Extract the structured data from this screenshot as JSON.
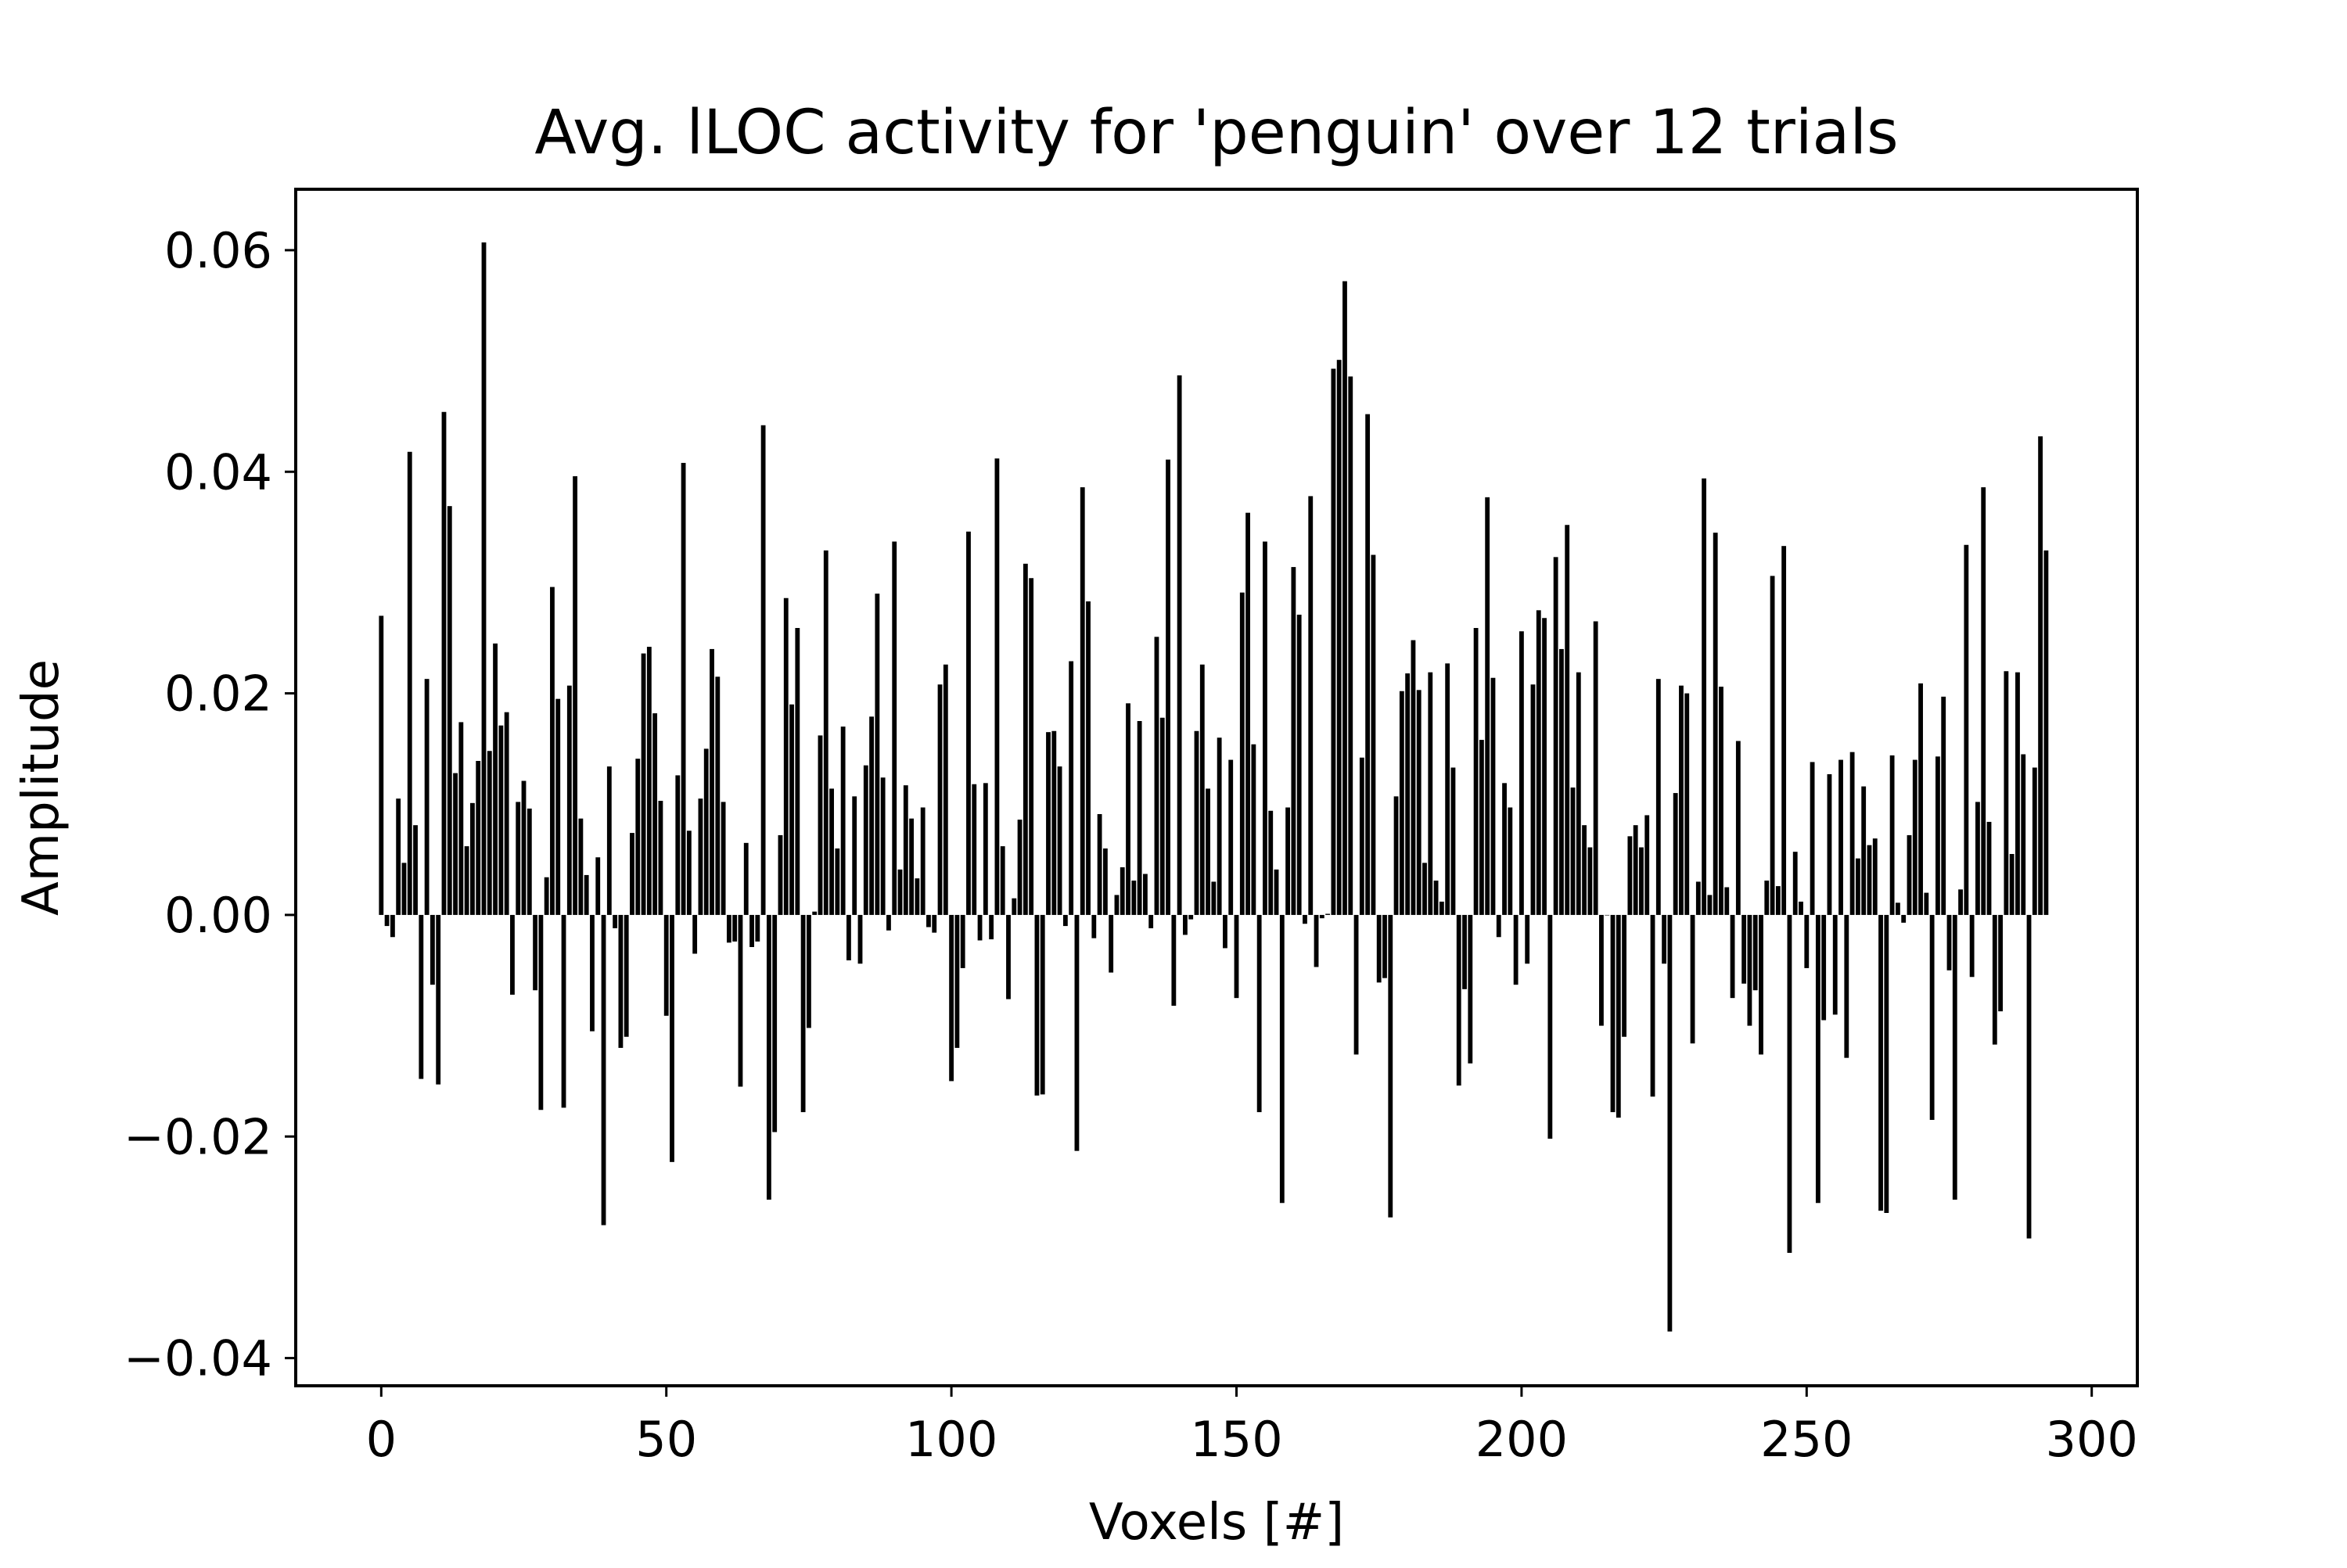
{
  "chart_data": {
    "type": "bar",
    "title": "Avg. lLOC activity for 'penguin' over 12 trials",
    "xlabel": "Voxels [#]",
    "ylabel": "Amplitude",
    "xlim": [
      -15,
      308
    ],
    "ylim": [
      -0.0425,
      0.0655
    ],
    "xticks": [
      0,
      50,
      100,
      150,
      200,
      250,
      300
    ],
    "xtick_labels": [
      "0",
      "50",
      "100",
      "150",
      "200",
      "250",
      "300"
    ],
    "yticks": [
      -0.04,
      -0.02,
      0.0,
      0.02,
      0.04,
      0.06
    ],
    "ytick_labels": [
      "−0.04",
      "−0.02",
      "0.00",
      "0.02",
      "0.04",
      "0.06"
    ],
    "grid": false,
    "bar_color": "#000000",
    "values": [
      0.027,
      -0.001,
      -0.002,
      0.0105,
      0.0047,
      0.0418,
      0.0081,
      -0.0148,
      0.0213,
      -0.0063,
      -0.0153,
      0.0454,
      0.0369,
      0.0128,
      0.0174,
      0.0062,
      0.0101,
      0.0139,
      0.0607,
      0.0148,
      0.0245,
      0.0171,
      0.0183,
      -0.0072,
      0.0102,
      0.0121,
      0.0096,
      -0.0068,
      -0.0176,
      0.0034,
      0.0296,
      0.0195,
      -0.0174,
      0.0207,
      0.0396,
      0.0087,
      0.0036,
      -0.0105,
      0.0052,
      -0.028,
      0.0134,
      -0.0012,
      -0.012,
      -0.011,
      0.0074,
      0.0141,
      0.0236,
      0.0242,
      0.0182,
      0.0103,
      -0.0091,
      -0.0223,
      0.0126,
      0.0408,
      0.0076,
      -0.0035,
      0.0105,
      0.015,
      0.024,
      0.0215,
      0.0102,
      -0.0025,
      -0.0024,
      -0.0155,
      0.0065,
      -0.0029,
      -0.0024,
      0.0442,
      -0.0257,
      -0.0196,
      0.0072,
      0.0286,
      0.019,
      0.0259,
      -0.0178,
      -0.0102,
      0.0003,
      0.0162,
      0.0329,
      0.0114,
      0.006,
      0.017,
      -0.0041,
      0.0107,
      -0.0044,
      0.0135,
      0.0179,
      0.029,
      0.0124,
      -0.0014,
      0.0337,
      0.0041,
      0.0117,
      0.0087,
      0.0033,
      0.0097,
      -0.0011,
      -0.0016,
      0.0208,
      0.0226,
      -0.015,
      -0.012,
      -0.0048,
      0.0346,
      0.0118,
      -0.0023,
      0.0119,
      -0.0022,
      0.0412,
      0.0062,
      -0.0076,
      0.0015,
      0.0086,
      0.0317,
      0.0304,
      -0.0163,
      -0.0162,
      0.0165,
      0.0166,
      0.0134,
      -0.001,
      0.0229,
      -0.0213,
      0.0386,
      0.0283,
      -0.0021,
      0.0091,
      0.006,
      -0.0052,
      0.0018,
      0.0043,
      0.0191,
      0.0031,
      0.0175,
      0.0037,
      -0.0012,
      0.0251,
      0.0178,
      0.0411,
      -0.0082,
      0.0487,
      -0.0018,
      -0.0004,
      0.0166,
      0.0226,
      0.0114,
      0.003,
      0.016,
      -0.003,
      0.014,
      -0.0075,
      0.0291,
      0.0363,
      0.0154,
      -0.0178,
      0.0337,
      0.0094,
      0.0041,
      -0.026,
      0.0097,
      0.0314,
      0.0271,
      -0.0008,
      0.0378,
      -0.0047,
      -0.0003,
      0.0001,
      0.0493,
      0.0501,
      0.0572,
      0.0486,
      -0.0126,
      0.0142,
      0.0452,
      0.0325,
      -0.0061,
      -0.0057,
      -0.0273,
      0.0107,
      0.0202,
      0.0218,
      0.0248,
      0.0203,
      0.0047,
      0.0219,
      0.0031,
      0.0012,
      0.0227,
      0.0133,
      -0.0154,
      -0.0067,
      -0.0134,
      0.0259,
      0.0158,
      0.0377,
      0.0214,
      -0.002,
      0.0119,
      0.0097,
      -0.0063,
      0.0256,
      -0.0044,
      0.0208,
      0.0275,
      0.0268,
      -0.0202,
      0.0323,
      0.024,
      0.0352,
      0.0115,
      0.0219,
      0.0081,
      0.0061,
      0.0265,
      -0.01,
      0.0,
      -0.0178,
      -0.0183,
      -0.011,
      0.0071,
      0.0081,
      0.0061,
      0.009,
      -0.0164,
      0.0213,
      -0.0044,
      -0.0376,
      0.011,
      0.0207,
      0.02,
      -0.0116,
      0.003,
      0.0394,
      0.0018,
      0.0345,
      0.0206,
      0.0025,
      -0.0075,
      0.0157,
      -0.0062,
      -0.01,
      -0.0068,
      -0.0126,
      0.0031,
      0.0306,
      0.0026,
      0.0333,
      -0.0305,
      0.0057,
      0.0012,
      -0.0048,
      0.0138,
      -0.026,
      -0.0095,
      0.0127,
      -0.009,
      0.014,
      -0.0129,
      0.0147,
      0.0051,
      0.0116,
      0.0063,
      0.0069,
      -0.0267,
      -0.0269,
      0.0144,
      0.0011,
      -0.0007,
      0.0072,
      0.014,
      0.0209,
      0.002,
      -0.0185,
      0.0143,
      0.0197,
      -0.005,
      -0.0257,
      0.0023,
      0.0334,
      -0.0056,
      0.0102,
      0.0386,
      0.0084,
      -0.0117,
      -0.0087,
      0.022,
      0.0055,
      0.0219,
      0.0145,
      -0.0292,
      0.0133,
      0.0432,
      0.0329
    ]
  }
}
